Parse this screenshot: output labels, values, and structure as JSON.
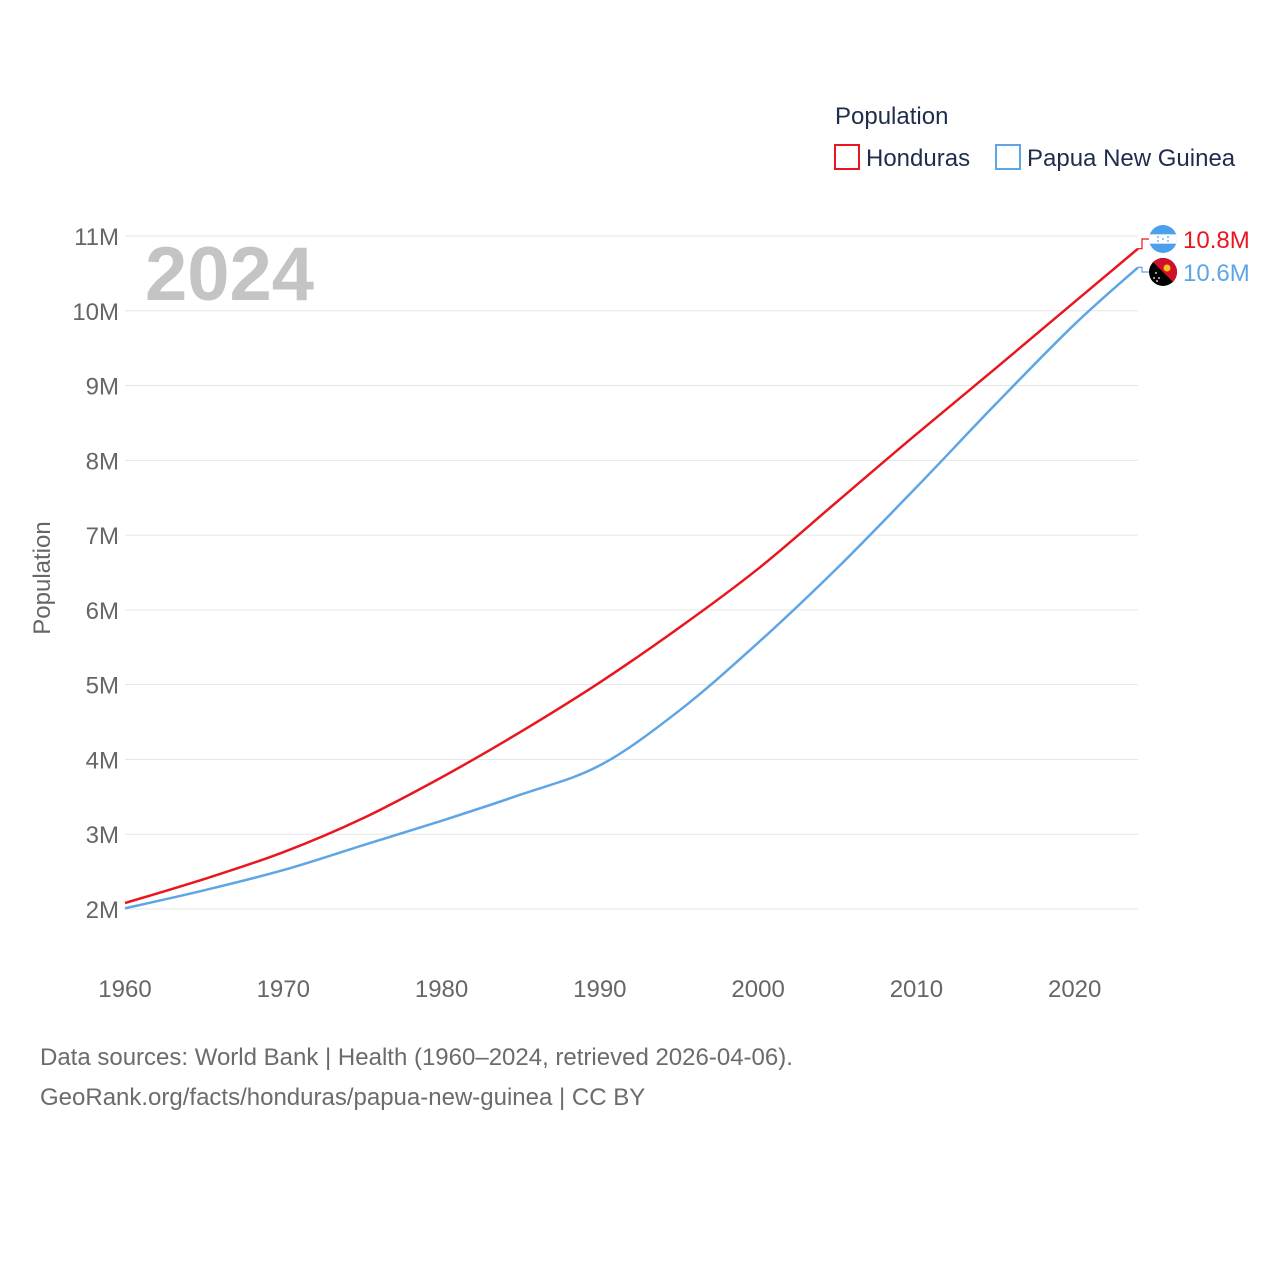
{
  "chart_data": {
    "type": "line",
    "year_watermark": "2024",
    "legend_title": "Population",
    "ylabel": "Population",
    "ylim": [
      2000000,
      11000000
    ],
    "yticks": [
      {
        "value": 2000000,
        "label": "2M"
      },
      {
        "value": 3000000,
        "label": "3M"
      },
      {
        "value": 4000000,
        "label": "4M"
      },
      {
        "value": 5000000,
        "label": "5M"
      },
      {
        "value": 6000000,
        "label": "6M"
      },
      {
        "value": 7000000,
        "label": "7M"
      },
      {
        "value": 8000000,
        "label": "8M"
      },
      {
        "value": 9000000,
        "label": "9M"
      },
      {
        "value": 10000000,
        "label": "10M"
      },
      {
        "value": 11000000,
        "label": "11M"
      }
    ],
    "xlim": [
      1960,
      2024
    ],
    "xticks": [
      {
        "value": 1960,
        "label": "1960"
      },
      {
        "value": 1970,
        "label": "1970"
      },
      {
        "value": 1980,
        "label": "1980"
      },
      {
        "value": 1990,
        "label": "1990"
      },
      {
        "value": 2000,
        "label": "2000"
      },
      {
        "value": 2010,
        "label": "2010"
      },
      {
        "value": 2020,
        "label": "2020"
      }
    ],
    "x": [
      1960,
      1965,
      1970,
      1975,
      1980,
      1985,
      1990,
      1995,
      2000,
      2005,
      2010,
      2015,
      2020,
      2024
    ],
    "series": [
      {
        "name": "Honduras",
        "color": "#e8171f",
        "end_label": "10.8M",
        "values": [
          2080000,
          2400000,
          2760000,
          3210000,
          3760000,
          4370000,
          5030000,
          5760000,
          6550000,
          7450000,
          8350000,
          9230000,
          10120000,
          10830000
        ]
      },
      {
        "name": "Papua New Guinea",
        "color": "#5fa5e6",
        "end_label": "10.6M",
        "values": [
          2010000,
          2250000,
          2520000,
          2850000,
          3180000,
          3530000,
          3920000,
          4650000,
          5560000,
          6560000,
          7640000,
          8750000,
          9820000,
          10580000
        ]
      }
    ]
  },
  "footer": {
    "line1": "Data sources: World Bank | Health (1960–2024, retrieved 2026-04-06).",
    "line2": "GeoRank.org/facts/honduras/papua-new-guinea | CC BY"
  }
}
